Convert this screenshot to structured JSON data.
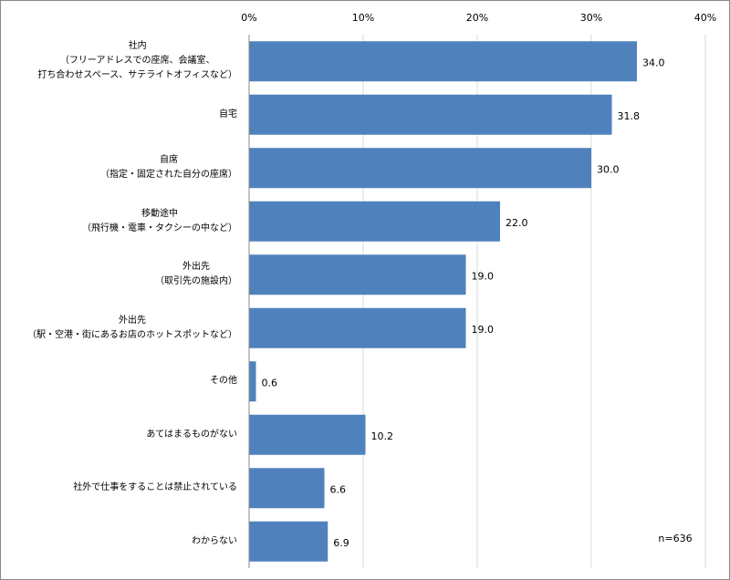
{
  "chart_data": {
    "type": "barh",
    "categories": [
      "社内\n（フリーアドレスでの座席、会議室、\n打ち合わせスペース、サテライトオフィスなど）",
      "自宅",
      "自席\n（指定・固定された自分の座席）",
      "移動途中\n（飛行機・電車・タクシーの中など）",
      "外出先\n（取引先の施設内）",
      "外出先\n（駅・空港・街にあるお店のホットスポットなど）",
      "その他",
      "あてはまるものがない",
      "社外で仕事をすることは禁止されている",
      "わからない"
    ],
    "values": [
      34,
      31.8,
      30,
      22,
      19,
      19,
      0.6,
      10.2,
      6.6,
      6.9
    ],
    "value_labels": [
      "34.0",
      "31.8",
      "30.0",
      "22.0",
      "19.0",
      "19.0",
      "0.6",
      "10.2",
      "6.6",
      "6.9"
    ],
    "color": "#4f81bd",
    "xlim": [
      0,
      40
    ],
    "xticks": [
      {
        "value": 0,
        "label": "0%"
      },
      {
        "value": 10,
        "label": "10%"
      },
      {
        "value": 20,
        "label": "20%"
      },
      {
        "value": 30,
        "label": "30%"
      },
      {
        "value": 40,
        "label": "40%"
      }
    ],
    "grid": true,
    "annotation": "n=636"
  }
}
